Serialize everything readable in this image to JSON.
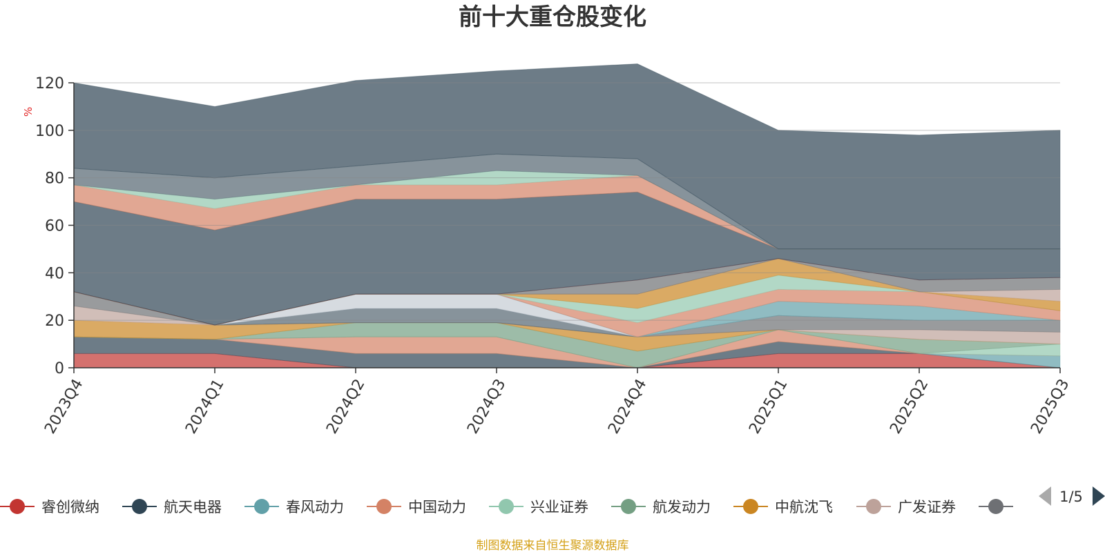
{
  "chart_data": {
    "type": "area",
    "title": "前十大重仓股变化",
    "ylabel": "%",
    "ylim": [
      0,
      120
    ],
    "yticks": [
      0,
      20,
      40,
      60,
      80,
      100,
      120
    ],
    "categories": [
      "2023Q4",
      "2024Q1",
      "2024Q2",
      "2024Q3",
      "2024Q4",
      "2025Q1",
      "2025Q2",
      "2025Q3"
    ],
    "stacked": true,
    "series": [
      {
        "name": "睿创微纳",
        "color": "#c23531",
        "values": [
          6,
          6,
          0,
          0,
          0,
          6,
          6,
          0
        ]
      },
      {
        "name": "航天电器",
        "color": "#2f4554",
        "values": [
          7,
          6,
          6,
          6,
          0,
          5,
          0,
          0
        ]
      },
      {
        "name": "春风动力",
        "color": "#61a0a8",
        "values": [
          0,
          0,
          0,
          0,
          0,
          0,
          0,
          5
        ]
      },
      {
        "name": "中国动力",
        "color": "#d48265",
        "values": [
          0,
          0,
          7,
          7,
          0,
          5,
          0,
          0
        ]
      },
      {
        "name": "兴业证券",
        "color": "#91c7ae",
        "values": [
          0,
          0,
          0,
          0,
          0,
          0,
          0,
          5
        ]
      },
      {
        "name": "航发动力",
        "color": "#749f83",
        "values": [
          0,
          0,
          6,
          6,
          7,
          0,
          6,
          0
        ]
      },
      {
        "name": "中航沈飞",
        "color": "#ca8622",
        "values": [
          7,
          6,
          0,
          0,
          6,
          0,
          0,
          0
        ]
      },
      {
        "name": "广发证券",
        "color": "#bda29a",
        "values": [
          6,
          0,
          0,
          0,
          0,
          0,
          4,
          5
        ]
      },
      {
        "name": "",
        "color": "#6e7074",
        "values": [
          6,
          0,
          0,
          0,
          0,
          6,
          4,
          5
        ]
      },
      {
        "name": "",
        "color": "#546570",
        "values": [
          0,
          0,
          6,
          6,
          0,
          0,
          0,
          0
        ]
      },
      {
        "name": "",
        "color": "#c4ccd3",
        "values": [
          0,
          0,
          6,
          6,
          0,
          0,
          0,
          0
        ]
      },
      {
        "name": "",
        "color": "#61a0a8",
        "values": [
          0,
          0,
          0,
          0,
          0,
          6,
          6,
          0
        ]
      },
      {
        "name": "",
        "color": "#d48265",
        "values": [
          0,
          0,
          0,
          0,
          6,
          5,
          6,
          4
        ]
      },
      {
        "name": "",
        "color": "#91c7ae",
        "values": [
          0,
          0,
          0,
          0,
          6,
          6,
          0,
          0
        ]
      },
      {
        "name": "",
        "color": "#ca8622",
        "values": [
          0,
          0,
          0,
          0,
          6,
          7,
          0,
          4
        ]
      },
      {
        "name": "",
        "color": "#bda29a",
        "values": [
          0,
          0,
          0,
          0,
          0,
          0,
          0,
          5
        ]
      },
      {
        "name": "",
        "color": "#6e7074",
        "values": [
          0,
          0,
          0,
          0,
          6,
          0,
          5,
          5
        ]
      },
      {
        "name": "",
        "color": "#c23531",
        "values": [
          0,
          0,
          0,
          0,
          0,
          0,
          0,
          0
        ]
      },
      {
        "name": "",
        "color": "#2f4554",
        "values": [
          38,
          40,
          40,
          40,
          37,
          4,
          13,
          12
        ]
      },
      {
        "name": "",
        "color": "#d48265",
        "values": [
          7,
          9,
          6,
          6,
          7,
          0,
          0,
          0
        ]
      },
      {
        "name": "",
        "color": "#91c7ae",
        "values": [
          0,
          4,
          0,
          6,
          0,
          0,
          0,
          0
        ]
      },
      {
        "name": "",
        "color": "#546570",
        "values": [
          7,
          9,
          8,
          7,
          7,
          0,
          0,
          0
        ]
      },
      {
        "name": "",
        "color": "#2f4554",
        "values": [
          36,
          30,
          36,
          35,
          40,
          50,
          48,
          50
        ]
      }
    ]
  },
  "legend": {
    "items": [
      {
        "name": "睿创微纳",
        "color": "#c23531"
      },
      {
        "name": "航天电器",
        "color": "#2f4554"
      },
      {
        "name": "春风动力",
        "color": "#61a0a8"
      },
      {
        "name": "中国动力",
        "color": "#d48265"
      },
      {
        "name": "兴业证券",
        "color": "#91c7ae"
      },
      {
        "name": "航发动力",
        "color": "#749f83"
      },
      {
        "name": "中航沈飞",
        "color": "#ca8622"
      },
      {
        "name": "广发证券",
        "color": "#bda29a"
      },
      {
        "name": "",
        "color": "#6e7074"
      }
    ],
    "page": "1/5"
  },
  "footer": {
    "source": "制图数据来自恒生聚源数据库",
    "color": "#d4a017"
  }
}
